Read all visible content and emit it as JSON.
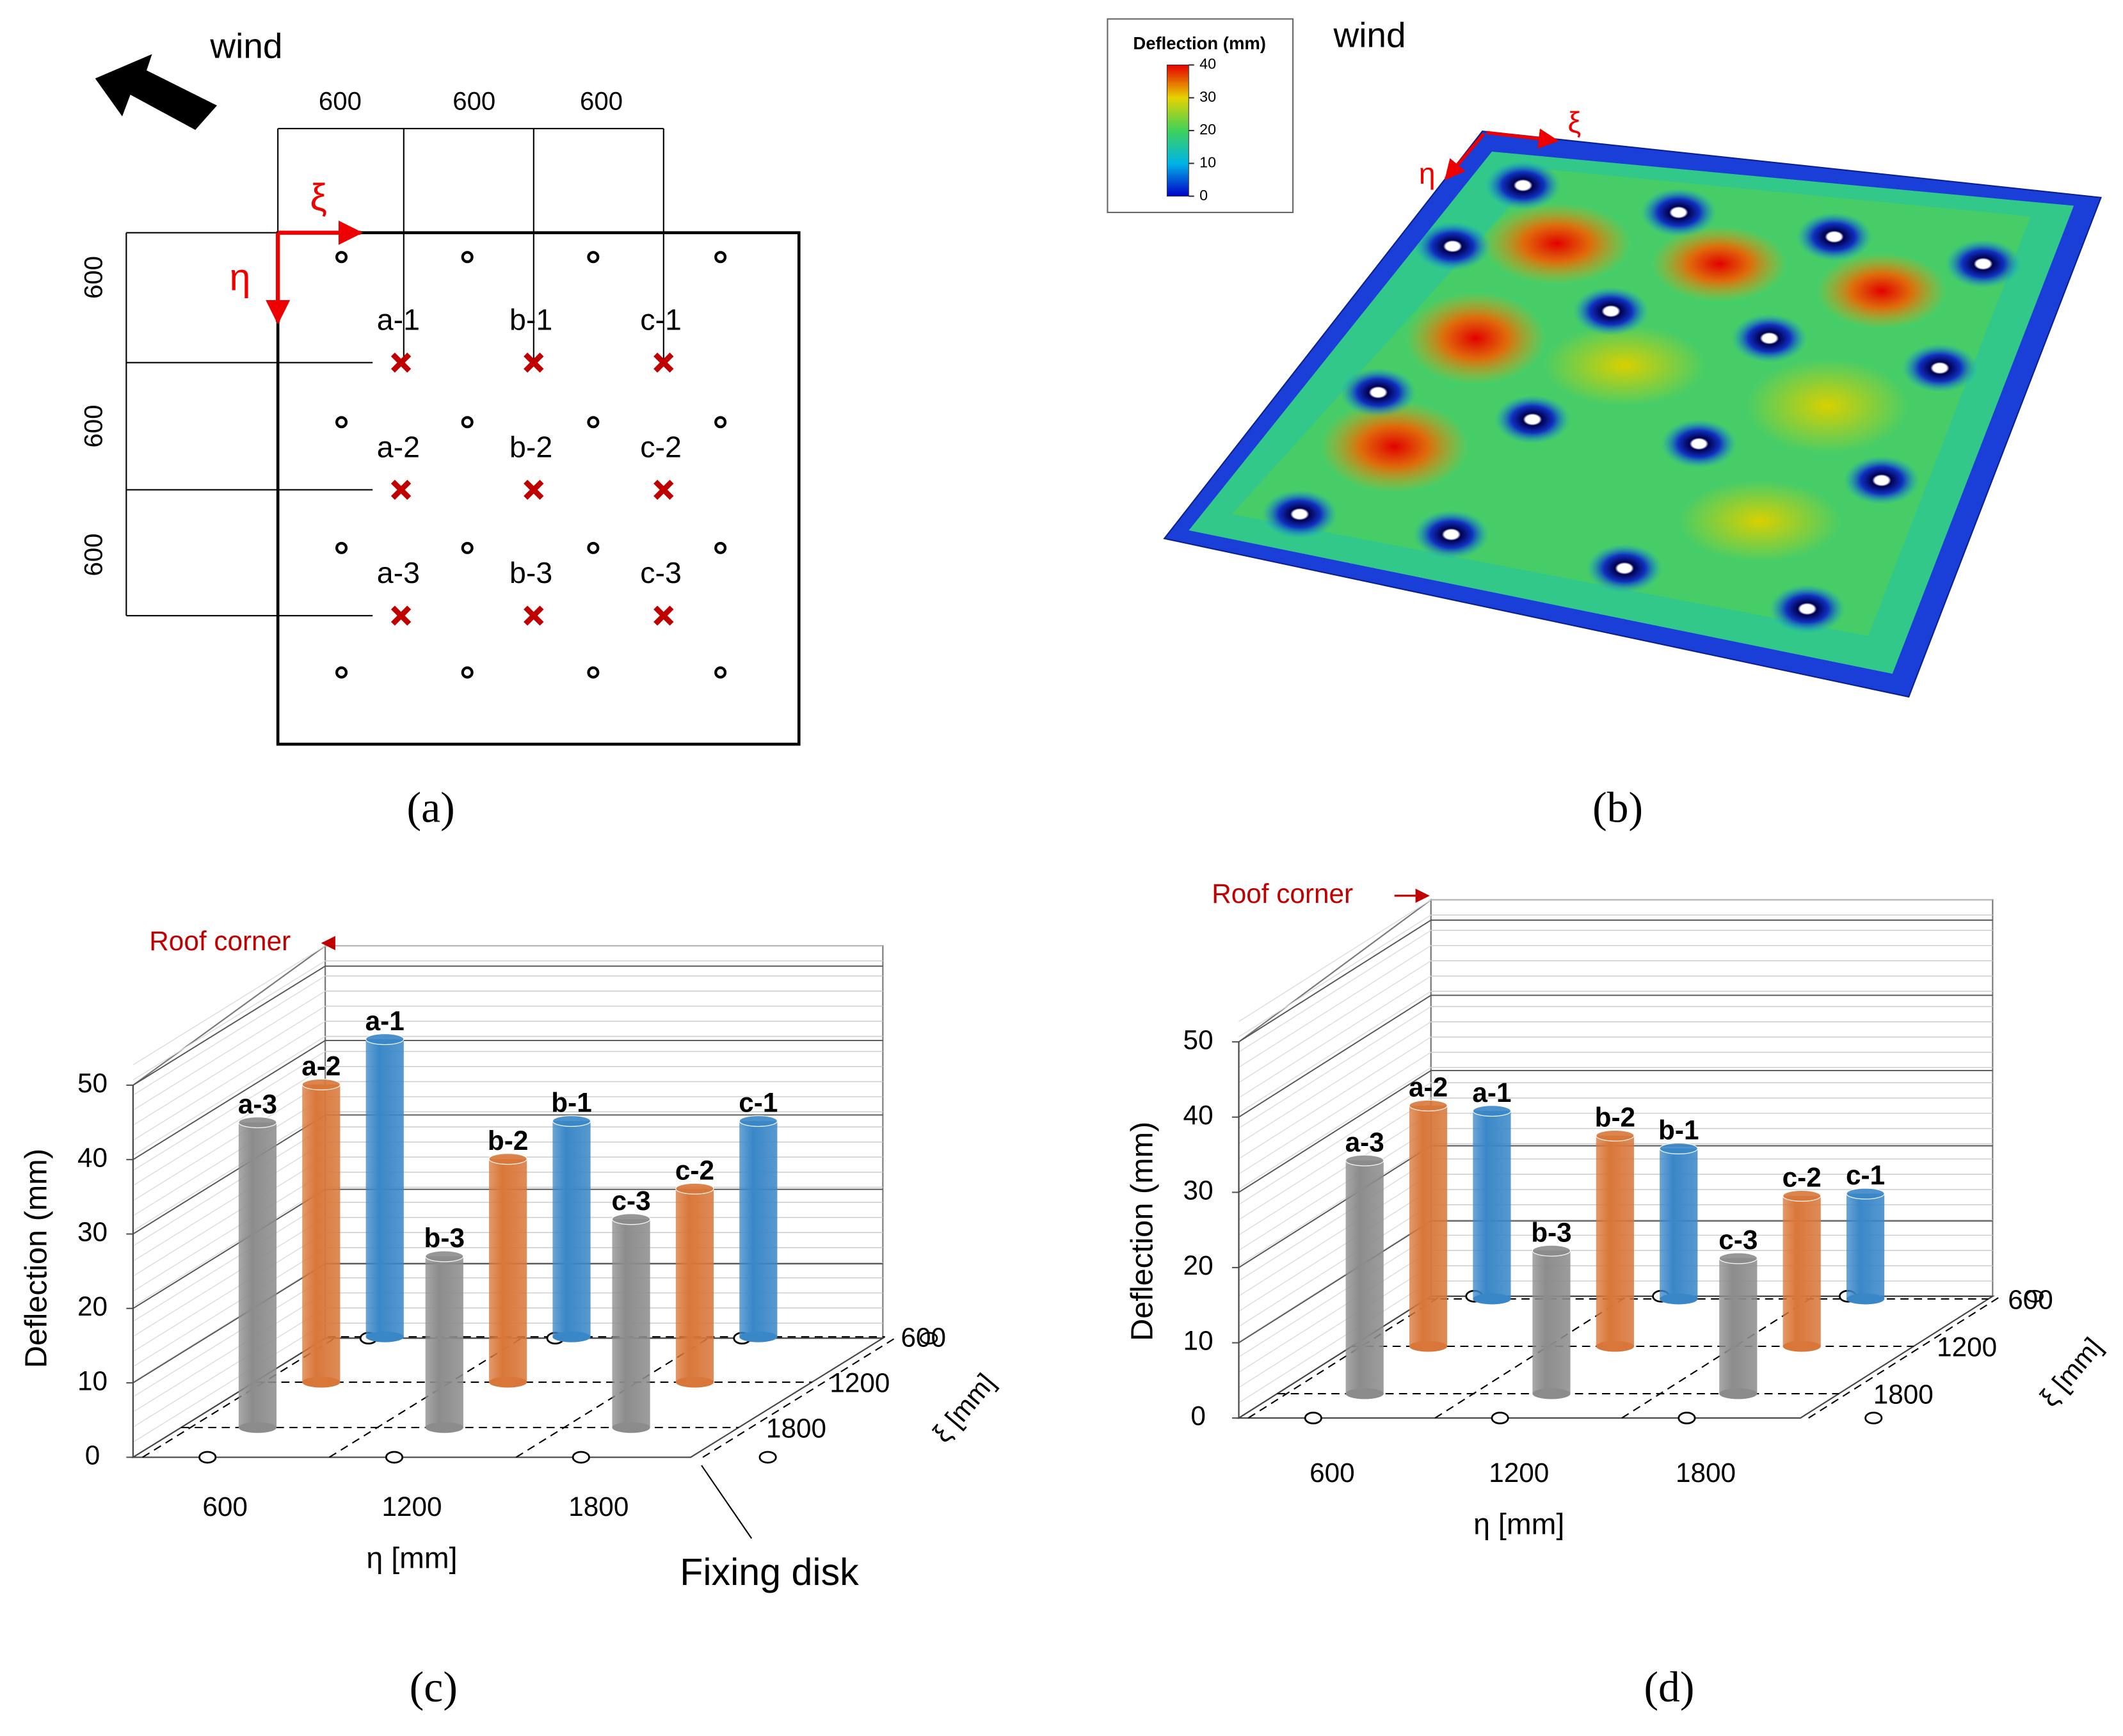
{
  "diagram_a": {
    "wind": "wind",
    "top_dims": [
      "600",
      "600",
      "600"
    ],
    "left_dims": [
      "600",
      "600",
      "600"
    ],
    "xi": "ξ",
    "eta": "η",
    "point_labels": [
      [
        "a-1",
        "b-1",
        "c-1"
      ],
      [
        "a-2",
        "b-2",
        "c-2"
      ],
      [
        "a-3",
        "b-3",
        "c-3"
      ]
    ]
  },
  "contour_b": {
    "legend_title": "Deflection (mm)",
    "legend_lim": [
      0,
      40
    ],
    "legend_ticks": [
      40,
      30,
      20,
      10,
      0
    ],
    "wind": "wind",
    "xi": "ξ",
    "eta": "η"
  },
  "chart_data": [
    {
      "type": "bar3d",
      "y_title": "Deflection (mm)",
      "ylim": [
        0,
        50
      ],
      "yticks": [
        0,
        10,
        20,
        30,
        40,
        50
      ],
      "categories": [
        "600",
        "1200",
        "1800"
      ],
      "x_title": "η [mm]",
      "depth_title": "ξ [mm]",
      "series": [
        {
          "name": "600",
          "color": "#3a87c8",
          "values": [
            40,
            29,
            29
          ],
          "bar_labels": [
            "a-1",
            "b-1",
            "c-1"
          ]
        },
        {
          "name": "1200",
          "color": "#d9773a",
          "values": [
            40,
            30,
            26
          ],
          "bar_labels": [
            "a-2",
            "b-2",
            "c-2"
          ]
        },
        {
          "name": "1800",
          "color": "#8c8c8c",
          "values": [
            41,
            23,
            28
          ],
          "bar_labels": [
            "a-3",
            "b-3",
            "c-3"
          ]
        }
      ],
      "roof_corner": "Roof corner",
      "fixing_disk": "Fixing disk"
    },
    {
      "type": "bar3d",
      "y_title": "Deflection (mm)",
      "ylim": [
        0,
        50
      ],
      "yticks": [
        0,
        10,
        20,
        30,
        40,
        50
      ],
      "categories": [
        "600",
        "1200",
        "1800"
      ],
      "x_title": "η [mm]",
      "depth_title": "ξ [mm]",
      "series": [
        {
          "name": "600",
          "color": "#3a87c8",
          "values": [
            25,
            20,
            14
          ],
          "bar_labels": [
            "a-1",
            "b-1",
            "c-1"
          ]
        },
        {
          "name": "1200",
          "color": "#d9773a",
          "values": [
            32,
            28,
            20
          ],
          "bar_labels": [
            "a-2",
            "b-2",
            "c-2"
          ]
        },
        {
          "name": "1800",
          "color": "#8c8c8c",
          "values": [
            31,
            19,
            18
          ],
          "bar_labels": [
            "a-3",
            "b-3",
            "c-3"
          ]
        }
      ],
      "roof_corner": "Roof corner"
    }
  ],
  "captions": [
    "(a)",
    "(b)",
    "(c)",
    "(d)"
  ]
}
